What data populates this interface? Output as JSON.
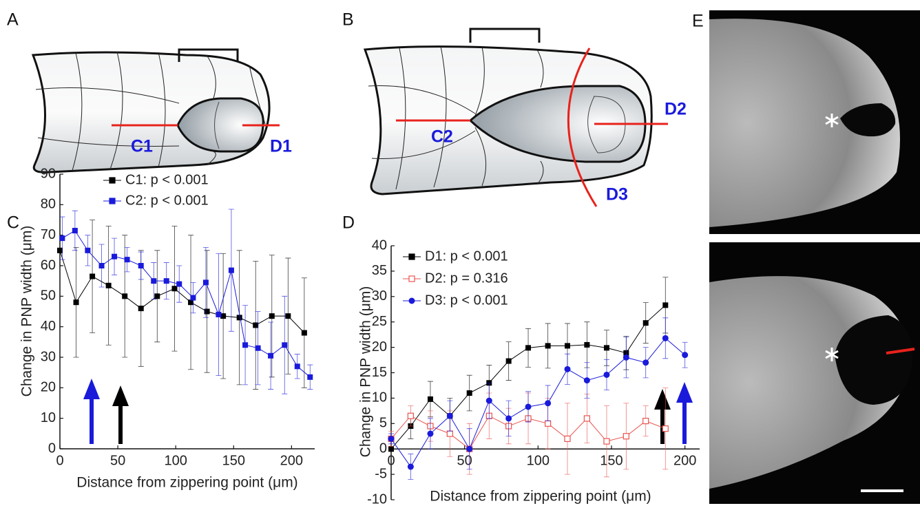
{
  "panel_labels": [
    "A",
    "B",
    "C",
    "D",
    "E"
  ],
  "diagram_labels": [
    "C1",
    "D1",
    "C2",
    "D2",
    "D3"
  ],
  "chart_data": [
    {
      "type": "line",
      "xlabel": "Distance from zippering point (μm)",
      "ylabel": "Change in PNP width (μm)",
      "xlim": [
        0,
        220
      ],
      "ylim": [
        0,
        90
      ],
      "xticks": [
        0,
        50,
        100,
        150,
        200
      ],
      "yticks": [
        0,
        10,
        20,
        30,
        40,
        50,
        60,
        70,
        80,
        90
      ],
      "legend": "upper left",
      "series": [
        {
          "name": "C1: p < 0.001",
          "color": "#000000",
          "marker": "square",
          "x": [
            0,
            14,
            28,
            42,
            56,
            70,
            84,
            99,
            113,
            127,
            141,
            155,
            169,
            183,
            197,
            211
          ],
          "values": [
            65,
            48,
            56.5,
            53.5,
            50,
            46,
            50,
            52.5,
            48,
            45,
            43.5,
            43,
            40.5,
            43.5,
            43.5,
            38
          ],
          "errors": [
            0,
            18,
            18.5,
            19.5,
            20,
            19,
            15,
            20.5,
            22,
            20,
            20.5,
            22,
            21,
            20,
            19,
            18
          ]
        },
        {
          "name": "C2: p < 0.001",
          "color": "#1a1adb",
          "marker": "square",
          "x": [
            2,
            13,
            24,
            36,
            47,
            58,
            70,
            81,
            92,
            103,
            115,
            126,
            137,
            148,
            160,
            171,
            182,
            194,
            205,
            216
          ],
          "values": [
            69,
            71.5,
            65,
            60,
            63,
            62,
            60,
            55,
            55,
            54,
            49.5,
            54.5,
            44,
            58.5,
            34,
            33,
            30.5,
            34,
            27,
            23.5
          ],
          "errors": [
            7,
            6.5,
            5,
            7,
            6,
            4,
            4.5,
            6,
            6,
            6,
            5,
            11.5,
            20,
            20,
            13,
            12,
            11,
            16,
            4,
            4
          ]
        }
      ]
    },
    {
      "type": "line",
      "xlabel": "Distance from zippering point (μm)",
      "ylabel": "Change in PNP width (μm)",
      "xlim": [
        0,
        210
      ],
      "ylim": [
        -10,
        40
      ],
      "xticks": [
        0,
        50,
        100,
        150,
        200
      ],
      "yticks": [
        -10,
        -5,
        0,
        5,
        10,
        15,
        20,
        25,
        30,
        35,
        40
      ],
      "legend": "upper left",
      "series": [
        {
          "name": "D1: p < 0.001",
          "color": "#000000",
          "marker": "square",
          "x": [
            0,
            13.3,
            26.7,
            40,
            53.3,
            66.7,
            80,
            93.3,
            106.7,
            120,
            133.3,
            146.7,
            160,
            173.3,
            186.7
          ],
          "values": [
            0,
            4.5,
            9.8,
            6.5,
            11,
            13,
            17.3,
            19.9,
            20.3,
            20.3,
            20.5,
            19.9,
            18.9,
            24.8,
            28.3
          ],
          "errors": [
            0.5,
            2.5,
            3.5,
            3.5,
            3.5,
            3.5,
            3.8,
            3.8,
            4.4,
            4.4,
            4.5,
            3.5,
            3.3,
            4,
            5.5
          ]
        },
        {
          "name": "D2: p = 0.316",
          "color": "#e8534f",
          "marker": "open-square",
          "x": [
            0,
            13.3,
            26.7,
            40,
            53.3,
            66.7,
            80,
            93.3,
            106.7,
            120,
            133.3,
            146.7,
            160,
            173.3,
            186.7
          ],
          "values": [
            2,
            6.5,
            4.5,
            3,
            0,
            6.5,
            4.5,
            6,
            5,
            2,
            6,
            1.5,
            2.5,
            5.5,
            4
          ],
          "errors": [
            1.5,
            2,
            3,
            4.5,
            5,
            4.5,
            3.5,
            5,
            5,
            7,
            4.8,
            7,
            6.5,
            3,
            8
          ]
        },
        {
          "name": "D3: p < 0.001",
          "color": "#1a1adb",
          "marker": "circle",
          "x": [
            0,
            13.3,
            26.7,
            40,
            53.3,
            66.7,
            80,
            93.3,
            106.7,
            120,
            133.3,
            146.7,
            160,
            173.3,
            186.7,
            200
          ],
          "values": [
            2,
            -3.5,
            3,
            6.5,
            0,
            9.5,
            6,
            8.3,
            9,
            15.7,
            13.5,
            14.6,
            18,
            17,
            21.8,
            18.5
          ],
          "errors": [
            1,
            2.5,
            3,
            3,
            4,
            3.5,
            3.5,
            3,
            3.5,
            3,
            3.5,
            3,
            4,
            3,
            4,
            2.5
          ]
        }
      ]
    }
  ]
}
